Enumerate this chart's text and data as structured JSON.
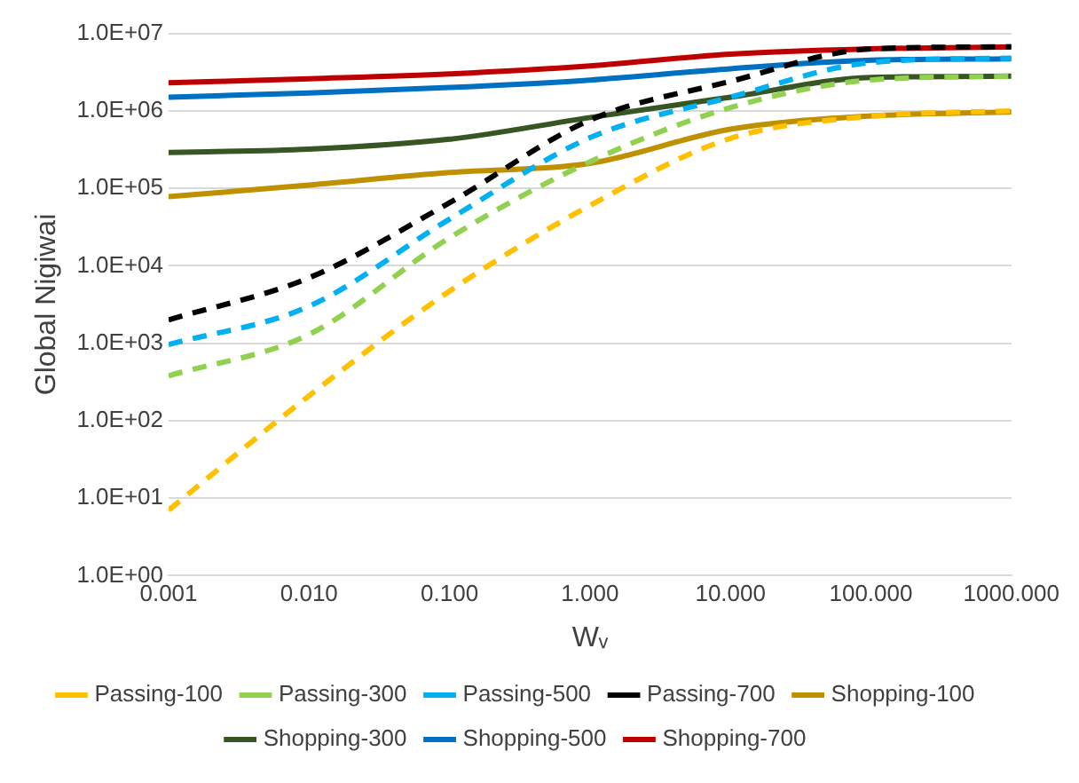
{
  "chart_data": {
    "type": "line",
    "xlabel": "Wᵥ",
    "ylabel": "Global Nigiwai",
    "x": [
      0.001,
      0.01,
      0.1,
      1,
      10,
      100,
      1000
    ],
    "series": [
      {
        "name": "Shopping-100",
        "color": "#bf9000",
        "line_style": "solid",
        "values": [
          78000,
          110000,
          160000,
          210000,
          580000,
          860000,
          970000
        ]
      },
      {
        "name": "Passing-100",
        "color": "#ffc000",
        "line_style": "dashed",
        "values": [
          7,
          210,
          4700,
          60000,
          440000,
          850000,
          1000000
        ]
      },
      {
        "name": "Shopping-300",
        "color": "#375623",
        "line_style": "solid",
        "values": [
          290000,
          320000,
          430000,
          820000,
          1500000,
          2700000,
          2800000
        ]
      },
      {
        "name": "Passing-300",
        "color": "#92d050",
        "line_style": "dashed",
        "values": [
          380,
          1300,
          23000,
          220000,
          1100000,
          2500000,
          2800000
        ]
      },
      {
        "name": "Shopping-500",
        "color": "#0070c0",
        "line_style": "solid",
        "values": [
          1500000,
          1700000,
          2000000,
          2500000,
          3500000,
          4500000,
          4700000
        ]
      },
      {
        "name": "Passing-500",
        "color": "#00b0f0",
        "line_style": "dashed",
        "values": [
          960,
          3000,
          40000,
          450000,
          1500000,
          4200000,
          4800000
        ]
      },
      {
        "name": "Shopping-700",
        "color": "#c00000",
        "line_style": "solid",
        "values": [
          2300000,
          2600000,
          3000000,
          3800000,
          5400000,
          6300000,
          6700000
        ]
      },
      {
        "name": "Passing-700",
        "color": "#000000",
        "line_style": "dashed",
        "values": [
          2000,
          7000,
          65000,
          760000,
          2400000,
          6300000,
          6700000
        ]
      }
    ],
    "log": "xy",
    "xlim": [
      0.001,
      1000
    ],
    "xticks": [
      {
        "value": 0.001,
        "label": "0.001"
      },
      {
        "value": 0.01,
        "label": "0.010"
      },
      {
        "value": 0.1,
        "label": "0.100"
      },
      {
        "value": 1,
        "label": "1.000"
      },
      {
        "value": 10,
        "label": "10.000"
      },
      {
        "value": 100,
        "label": "100.000"
      },
      {
        "value": 1000,
        "label": "1000.000"
      }
    ],
    "ylim": [
      1,
      10000000
    ],
    "yticks": [
      {
        "value": 1,
        "label": "1.0E+00"
      },
      {
        "value": 10,
        "label": "1.0E+01"
      },
      {
        "value": 100,
        "label": "1.0E+02"
      },
      {
        "value": 1000,
        "label": "1.0E+03"
      },
      {
        "value": 10000,
        "label": "1.0E+04"
      },
      {
        "value": 100000,
        "label": "1.0E+05"
      },
      {
        "value": 1000000,
        "label": "1.0E+06"
      },
      {
        "value": 10000000,
        "label": "1.0E+07"
      }
    ],
    "grid": "y",
    "legend": "bottom",
    "marker": "none"
  }
}
